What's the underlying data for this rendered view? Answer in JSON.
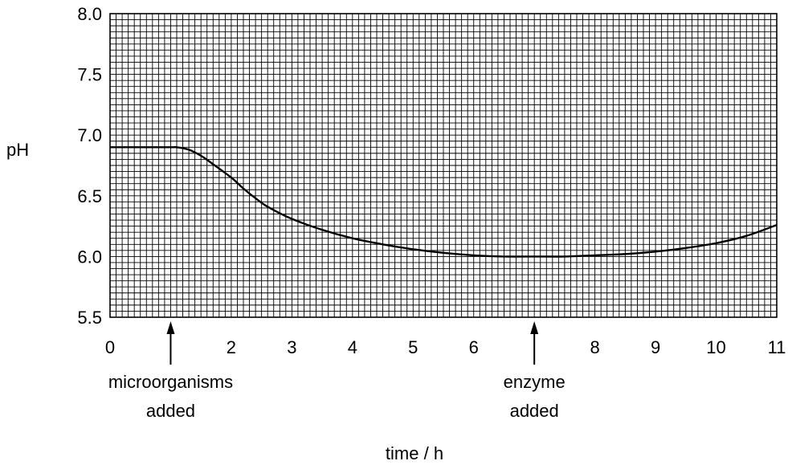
{
  "chart_data": {
    "type": "line",
    "title": "",
    "xlabel": "time / h",
    "ylabel": "pH",
    "xlim": [
      0,
      11
    ],
    "ylim": [
      5.5,
      8.0
    ],
    "grid": true,
    "x_ticks": [
      {
        "value": 0,
        "label": "0"
      },
      {
        "value": 2,
        "label": "2"
      },
      {
        "value": 3,
        "label": "3"
      },
      {
        "value": 4,
        "label": "4"
      },
      {
        "value": 5,
        "label": "5"
      },
      {
        "value": 6,
        "label": "6"
      },
      {
        "value": 8,
        "label": "8"
      },
      {
        "value": 9,
        "label": "9"
      },
      {
        "value": 10,
        "label": "10"
      },
      {
        "value": 11,
        "label": "11"
      }
    ],
    "y_ticks": [
      {
        "value": 5.5,
        "label": "5.5"
      },
      {
        "value": 6.0,
        "label": "6.0"
      },
      {
        "value": 6.5,
        "label": "6.5"
      },
      {
        "value": 7.0,
        "label": "7.0"
      },
      {
        "value": 7.5,
        "label": "7.5"
      },
      {
        "value": 8.0,
        "label": "8.0"
      }
    ],
    "series": [
      {
        "x": [
          0,
          0.5,
          1.0,
          1.1,
          1.3,
          1.5,
          1.7,
          2.0,
          2.2,
          2.4,
          2.6,
          3.0,
          3.5,
          4.0,
          4.5,
          5.0,
          5.5,
          6.0,
          6.5,
          7.0,
          7.5,
          8.0,
          8.5,
          9.0,
          9.5,
          10.0,
          10.5,
          11.0
        ],
        "y": [
          6.9,
          6.9,
          6.9,
          6.9,
          6.88,
          6.83,
          6.76,
          6.65,
          6.56,
          6.48,
          6.41,
          6.31,
          6.22,
          6.15,
          6.1,
          6.06,
          6.03,
          6.01,
          6.0,
          6.0,
          6.0,
          6.01,
          6.02,
          6.04,
          6.07,
          6.11,
          6.17,
          6.26
        ]
      }
    ],
    "annotations": [
      {
        "x": 1.0,
        "lines": [
          "microorganisms",
          "added"
        ]
      },
      {
        "x": 7.0,
        "lines": [
          "enzyme",
          "added"
        ]
      }
    ]
  }
}
